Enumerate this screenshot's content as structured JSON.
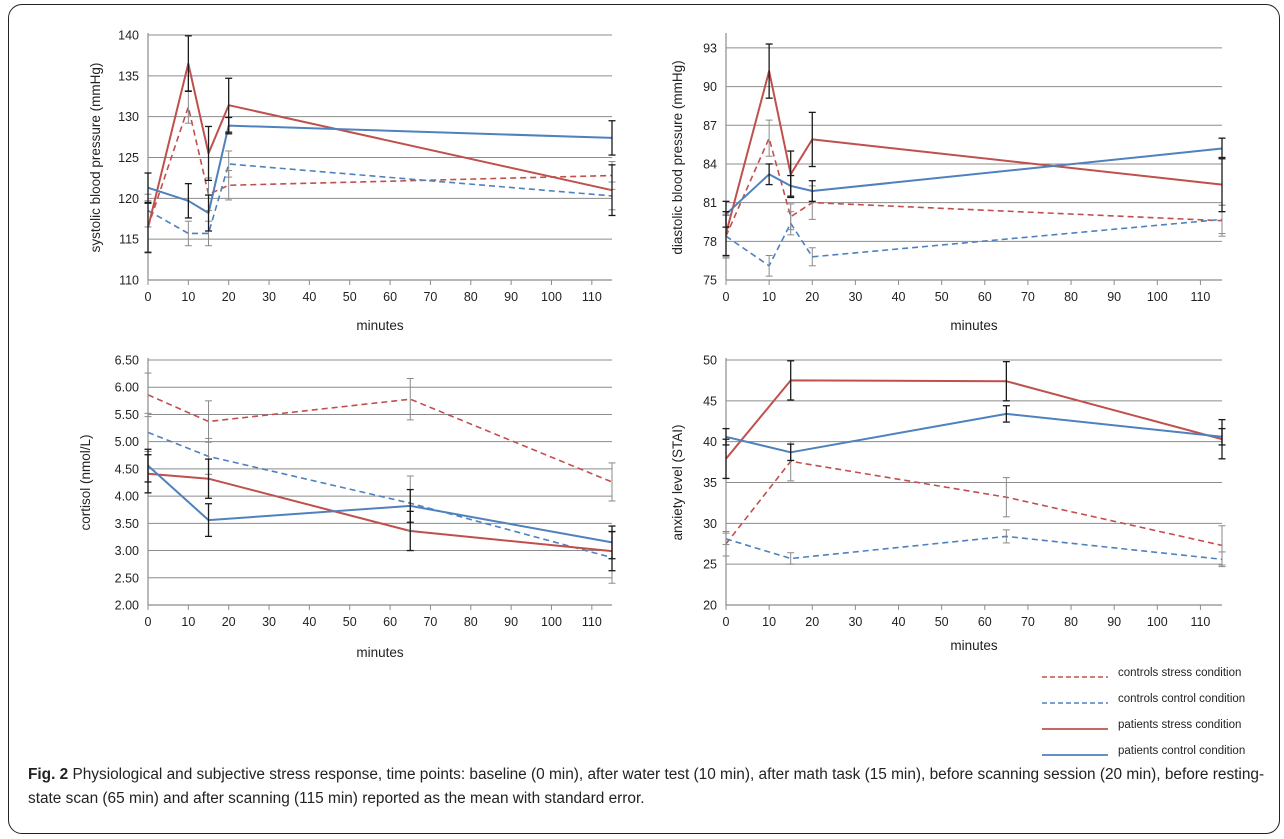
{
  "caption": {
    "label": "Fig. 2",
    "text": " Physiological and subjective stress response, time points: baseline (0 min), after water test (10 min), after math task (15 min), before scanning session (20 min), before resting-state scan (65 min) and after scanning (115 min) reported as the mean with standard error."
  },
  "legend": [
    {
      "name": "controls stress condition",
      "color": "#c0504d",
      "dash": "dashed"
    },
    {
      "name": "controls control condition",
      "color": "#4f81bd",
      "dash": "dashed"
    },
    {
      "name": "patients stress condition",
      "color": "#c0504d",
      "dash": "solid"
    },
    {
      "name": "patients control condition",
      "color": "#4f81bd",
      "dash": "solid"
    }
  ],
  "colors": {
    "stress": "#c0504d",
    "control": "#4f81bd",
    "grid": "#8c8c8c"
  },
  "chart_data": [
    {
      "type": "line",
      "xlabel": "minutes",
      "ylabel": "systolic blood pressure (mmHg)",
      "xlim": [
        0,
        115
      ],
      "ylim": [
        110,
        140
      ],
      "xticks": [
        0,
        10,
        20,
        30,
        40,
        50,
        60,
        70,
        80,
        90,
        100,
        110
      ],
      "yticks": [
        110,
        115,
        120,
        125,
        130,
        135,
        140
      ],
      "ytick_labels": [
        "110",
        "115",
        "120",
        "125",
        "130",
        "135",
        "140"
      ],
      "grid": true,
      "series": [
        {
          "name": "controls stress condition",
          "x": [
            0,
            10,
            15,
            20,
            115
          ],
          "y": [
            116.5,
            131.2,
            120.5,
            121.6,
            122.8
          ],
          "err": [
            3.2,
            2.0,
            2.0,
            1.8,
            1.7
          ]
        },
        {
          "name": "controls control condition",
          "x": [
            0,
            10,
            15,
            20,
            115
          ],
          "y": [
            118.5,
            115.7,
            115.7,
            124.2,
            120.3
          ],
          "err": [
            2.0,
            1.5,
            1.5,
            1.6,
            1.7
          ]
        },
        {
          "name": "patients stress condition",
          "x": [
            0,
            10,
            15,
            20,
            115
          ],
          "y": [
            116.4,
            136.5,
            125.5,
            131.4,
            121.0
          ],
          "err": [
            3.0,
            3.4,
            3.3,
            3.3,
            3.1
          ]
        },
        {
          "name": "patients control condition",
          "x": [
            0,
            10,
            15,
            20,
            115
          ],
          "y": [
            121.3,
            119.7,
            118.2,
            128.9,
            127.4
          ],
          "err": [
            1.8,
            2.1,
            2.2,
            1.0,
            2.1
          ]
        }
      ]
    },
    {
      "type": "line",
      "xlabel": "minutes",
      "ylabel": "diastolic blood pressure (mmHg)",
      "xlim": [
        0,
        115
      ],
      "ylim": [
        75,
        94
      ],
      "xticks": [
        0,
        10,
        20,
        30,
        40,
        50,
        60,
        70,
        80,
        90,
        100,
        110
      ],
      "yticks": [
        75,
        78,
        81,
        84,
        87,
        90,
        93
      ],
      "ytick_labels": [
        "75",
        "78",
        "81",
        "84",
        "87",
        "90",
        "93"
      ],
      "grid": true,
      "series": [
        {
          "name": "controls stress condition",
          "x": [
            0,
            10,
            15,
            20,
            115
          ],
          "y": [
            78.4,
            86.0,
            79.9,
            81.0,
            79.6
          ],
          "err": [
            1.7,
            1.4,
            1.0,
            1.3,
            1.2
          ]
        },
        {
          "name": "controls control condition",
          "x": [
            0,
            10,
            15,
            20,
            115
          ],
          "y": [
            78.4,
            76.1,
            79.4,
            76.8,
            79.7
          ],
          "err": [
            1.6,
            0.8,
            0.9,
            0.7,
            1.1
          ]
        },
        {
          "name": "patients stress condition",
          "x": [
            0,
            10,
            15,
            20,
            115
          ],
          "y": [
            78.6,
            91.2,
            83.2,
            85.9,
            82.4
          ],
          "err": [
            1.7,
            2.1,
            1.8,
            2.1,
            2.1
          ]
        },
        {
          "name": "patients control condition",
          "x": [
            0,
            10,
            15,
            20,
            115
          ],
          "y": [
            80.1,
            83.2,
            82.3,
            81.9,
            85.2
          ],
          "err": [
            1.0,
            0.8,
            0.8,
            0.8,
            0.8
          ]
        }
      ]
    },
    {
      "type": "line",
      "xlabel": "minutes",
      "ylabel": "cortisol (nmol/L)",
      "xlim": [
        0,
        115
      ],
      "ylim": [
        2.0,
        6.5
      ],
      "xticks": [
        0,
        10,
        20,
        30,
        40,
        50,
        60,
        70,
        80,
        90,
        100,
        110
      ],
      "yticks": [
        2.0,
        2.5,
        3.0,
        3.5,
        4.0,
        4.5,
        5.0,
        5.5,
        6.0,
        6.5
      ],
      "ytick_labels": [
        "2.00",
        "2.50",
        "3.00",
        "3.50",
        "4.00",
        "4.50",
        "5.00",
        "5.50",
        "6.00",
        "6.50"
      ],
      "grid": true,
      "series": [
        {
          "name": "controls stress condition",
          "x": [
            0,
            15,
            65,
            115
          ],
          "y": [
            5.86,
            5.37,
            5.78,
            4.26
          ],
          "err": [
            0.4,
            0.38,
            0.38,
            0.35
          ]
        },
        {
          "name": "controls control condition",
          "x": [
            0,
            15,
            65,
            115
          ],
          "y": [
            5.17,
            4.73,
            3.87,
            2.87
          ],
          "err": [
            0.35,
            0.33,
            0.5,
            0.47
          ]
        },
        {
          "name": "patients stress condition",
          "x": [
            0,
            15,
            65,
            115
          ],
          "y": [
            4.41,
            4.32,
            3.36,
            2.99
          ],
          "err": [
            0.35,
            0.36,
            0.36,
            0.36
          ]
        },
        {
          "name": "patients control condition",
          "x": [
            0,
            15,
            65,
            115
          ],
          "y": [
            4.56,
            3.56,
            3.82,
            3.15
          ],
          "err": [
            0.3,
            0.3,
            0.3,
            0.3
          ]
        }
      ]
    },
    {
      "type": "line",
      "xlabel": "minutes",
      "ylabel": "anxiety level (STAI)",
      "xlim": [
        0,
        115
      ],
      "ylim": [
        20,
        50
      ],
      "xticks": [
        0,
        10,
        20,
        30,
        40,
        50,
        60,
        70,
        80,
        90,
        100,
        110
      ],
      "yticks": [
        20,
        25,
        30,
        35,
        40,
        45,
        50
      ],
      "ytick_labels": [
        "20",
        "25",
        "30",
        "35",
        "40",
        "45",
        "50"
      ],
      "grid": true,
      "series": [
        {
          "name": "controls stress condition",
          "x": [
            0,
            15,
            65,
            115
          ],
          "y": [
            27.5,
            37.6,
            33.2,
            27.3
          ],
          "err": [
            1.5,
            2.4,
            2.4,
            2.4
          ]
        },
        {
          "name": "controls control condition",
          "x": [
            0,
            15,
            65,
            115
          ],
          "y": [
            28.1,
            25.7,
            28.4,
            25.6
          ],
          "err": [
            0.7,
            0.7,
            0.8,
            0.9
          ]
        },
        {
          "name": "patients stress condition",
          "x": [
            0,
            15,
            65,
            115
          ],
          "y": [
            37.9,
            47.5,
            47.4,
            40.3
          ],
          "err": [
            2.4,
            2.4,
            2.4,
            2.4
          ]
        },
        {
          "name": "patients control condition",
          "x": [
            0,
            15,
            65,
            115
          ],
          "y": [
            40.6,
            38.7,
            43.4,
            40.6
          ],
          "err": [
            1.0,
            1.0,
            1.0,
            1.0
          ]
        }
      ]
    }
  ]
}
